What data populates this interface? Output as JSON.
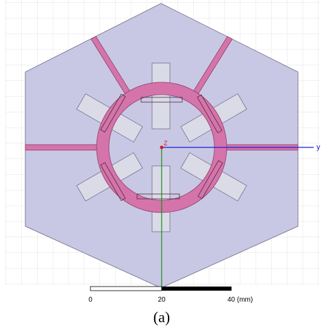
{
  "axes": {
    "origin_label": "Z",
    "x_label": "y"
  },
  "scale_bar": {
    "labels": [
      "0",
      "20",
      "40 (mm)"
    ]
  },
  "caption": "(a)"
}
